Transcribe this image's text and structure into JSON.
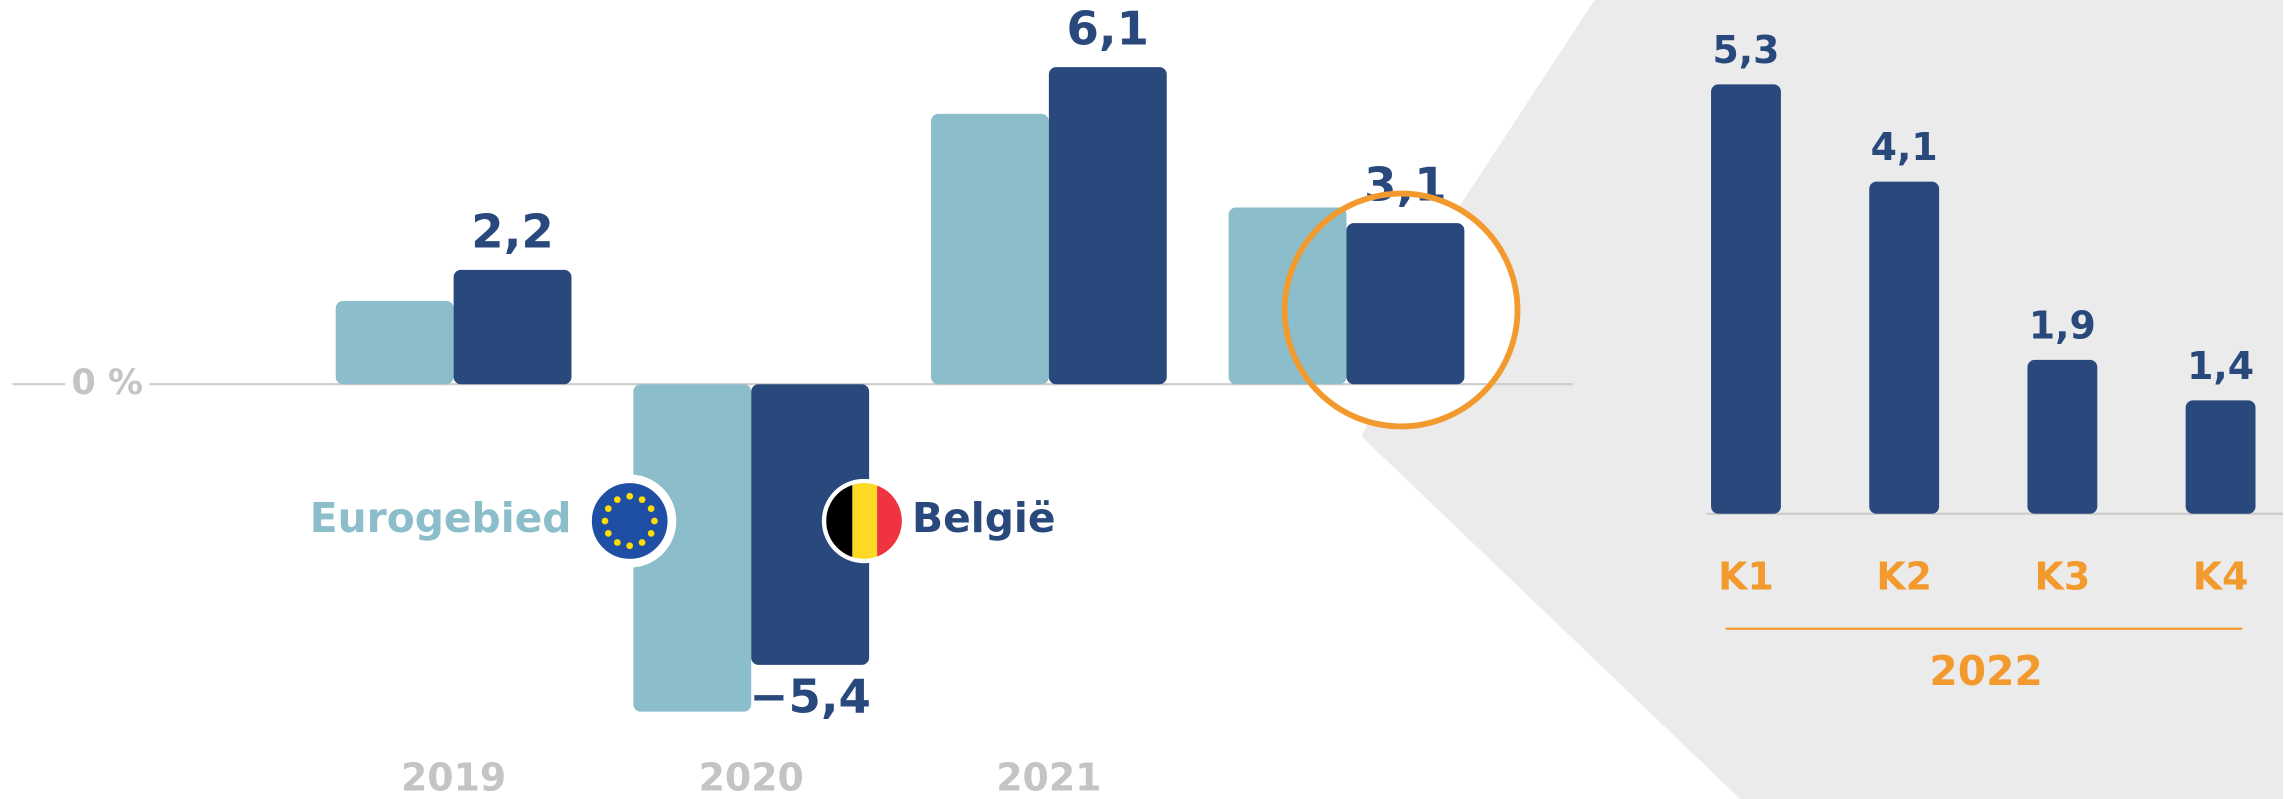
{
  "chart_data": [
    {
      "type": "bar",
      "categories": [
        "2019",
        "2020",
        "2021",
        null
      ],
      "series": [
        {
          "name": "Eurogebied",
          "color": "#8bbdcb",
          "values": [
            1.6,
            -6.3,
            5.2,
            3.4
          ]
        },
        {
          "name": "België",
          "color": "#29487c",
          "values": [
            2.2,
            -5.4,
            6.1,
            3.1
          ],
          "value_labels": [
            "2,2",
            "−5,4",
            "6,1",
            "3,1"
          ]
        }
      ],
      "ylim": [
        -7,
        7
      ],
      "yticks": [
        {
          "value": 0,
          "label": "0 %"
        }
      ]
    },
    {
      "type": "bar",
      "categories": [
        "K1",
        "K2",
        "K3",
        "K4"
      ],
      "values": [
        5.3,
        4.1,
        1.9,
        1.4
      ],
      "value_labels": [
        "5,3",
        "4,1",
        "1,9",
        "1,4"
      ],
      "color": "#29487c",
      "group_label": "2022",
      "ylim": [
        0,
        6
      ]
    }
  ]
}
